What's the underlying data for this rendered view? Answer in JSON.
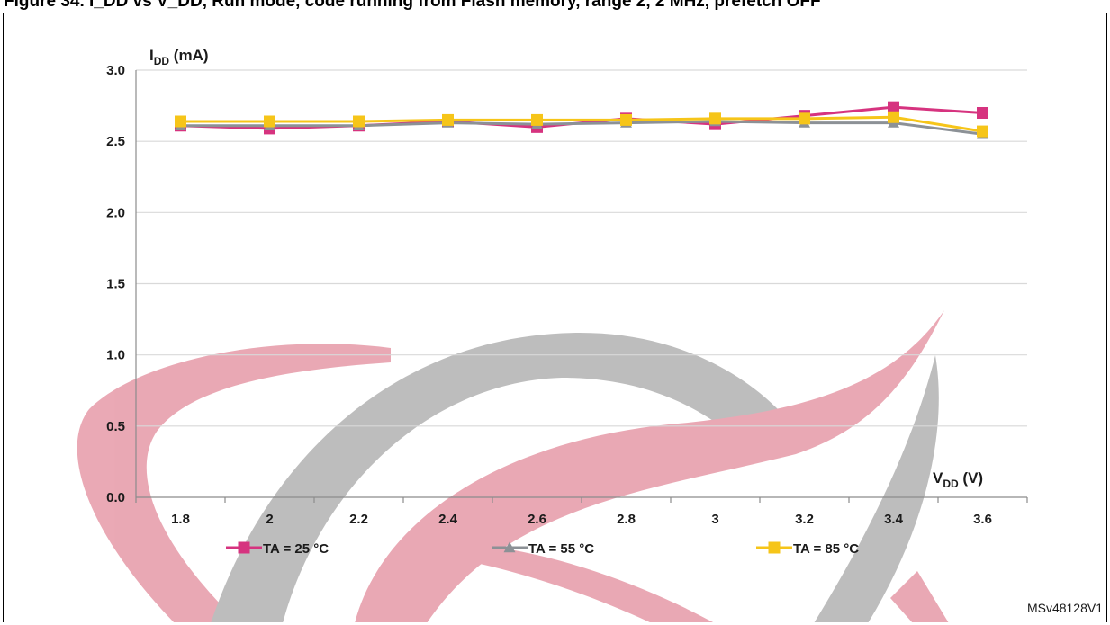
{
  "caption": "Figure 34. I_DD vs V_DD, Run mode, code running from Flash memory, range 2, 2 MHz, prefetch OFF",
  "figure_id": "MSv48128V1",
  "colors": {
    "ta25": "#d6337f",
    "ta55": "#8c9196",
    "ta85": "#f6c519",
    "grid": "#d9d9d9",
    "axis": "#8c8c8c"
  },
  "chart_data": {
    "type": "line",
    "x": [
      1.8,
      2,
      2.2,
      2.4,
      2.6,
      2.8,
      3,
      3.2,
      3.4,
      3.6
    ],
    "x_tick_labels": [
      "1.8",
      "2",
      "2.2",
      "2.4",
      "2.6",
      "2.8",
      "3",
      "3.2",
      "3.4",
      "3.6"
    ],
    "ylim": [
      0.0,
      3.0
    ],
    "y_ticks": [
      0.0,
      0.5,
      1.0,
      1.5,
      2.0,
      2.5,
      3.0
    ],
    "y_tick_labels": [
      "0.0",
      "0.5",
      "1.0",
      "1.5",
      "2.0",
      "2.5",
      "3.0"
    ],
    "ylabel": {
      "main": "I",
      "sub": "DD",
      "unit": " (mA)"
    },
    "xlabel": {
      "main": "V",
      "sub": "DD",
      "unit": " (V)"
    },
    "grid": true,
    "legend_position": "bottom",
    "series": [
      {
        "name": "TA = 25 °C",
        "marker": "square",
        "color": "#d6337f",
        "values": [
          2.61,
          2.59,
          2.61,
          2.64,
          2.6,
          2.66,
          2.62,
          2.68,
          2.74,
          2.7
        ]
      },
      {
        "name": "TA = 55 °C",
        "marker": "triangle",
        "color": "#8c9196",
        "values": [
          2.61,
          2.61,
          2.61,
          2.63,
          2.62,
          2.63,
          2.64,
          2.63,
          2.63,
          2.55
        ]
      },
      {
        "name": "TA = 85 °C",
        "marker": "square",
        "color": "#f6c519",
        "values": [
          2.64,
          2.64,
          2.64,
          2.65,
          2.65,
          2.65,
          2.66,
          2.66,
          2.67,
          2.57
        ]
      }
    ]
  }
}
